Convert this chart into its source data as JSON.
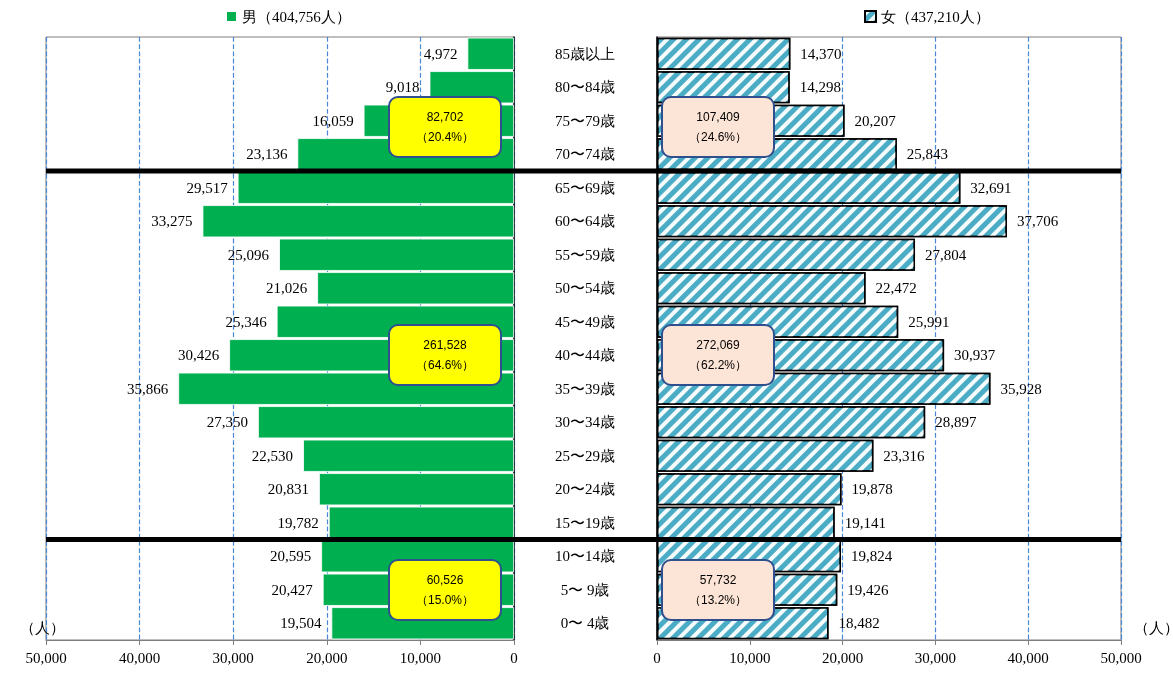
{
  "chart_data": [
    {
      "type": "bar",
      "orientation": "horizontal",
      "categories": [
        "85歳以上",
        "80〜84歳",
        "75〜79歳",
        "70〜74歳",
        "65〜69歳",
        "60〜64歳",
        "55〜59歳",
        "50〜54歳",
        "45〜49歳",
        "40〜44歳",
        "35〜39歳",
        "30〜34歳",
        "25〜29歳",
        "20〜24歳",
        "15〜19歳",
        "10〜14歳",
        "5〜 9歳",
        "0〜 4歳"
      ],
      "series": [
        {
          "name": "男（404,756人）",
          "color": "#00b050",
          "values": [
            4972,
            9018,
            16059,
            23136,
            29517,
            33275,
            25096,
            21026,
            25346,
            30426,
            35866,
            27350,
            22530,
            20831,
            19782,
            20595,
            20427,
            19504
          ],
          "value_labels": [
            "4,972",
            "9,018",
            "16,059",
            "23,136",
            "29,517",
            "33,275",
            "25,096",
            "21,026",
            "25,346",
            "30,426",
            "35,866",
            "27,350",
            "22,530",
            "20,831",
            "19,782",
            "20,595",
            "20,427",
            "19,504"
          ]
        }
      ],
      "xlim": [
        50000,
        0
      ],
      "xticks": [
        {
          "value": 50000,
          "label": "50,000"
        },
        {
          "value": 40000,
          "label": "40,000"
        },
        {
          "value": 30000,
          "label": "30,000"
        },
        {
          "value": 20000,
          "label": "20,000"
        },
        {
          "value": 10000,
          "label": "10,000"
        },
        0
      ],
      "xlabel": "（人）",
      "grid": "x",
      "legend": "top",
      "annotations": [
        "82,702\n（20.4%）",
        "261,528\n（64.6%）",
        "60,526\n（15.0%）"
      ]
    },
    {
      "type": "bar",
      "orientation": "horizontal",
      "categories": [
        null,
        null,
        null,
        null,
        null,
        null,
        null,
        null,
        null,
        null,
        null,
        null,
        null,
        null,
        null,
        null,
        null,
        null
      ],
      "series": [
        {
          "name": "女（437,210人）",
          "color": "#4bacc6",
          "values": [
            14370,
            14298,
            20207,
            25843,
            32691,
            37706,
            27804,
            22472,
            25991,
            30937,
            35928,
            28897,
            23316,
            19878,
            19141,
            19824,
            19426,
            18482
          ],
          "value_labels": [
            "14,370",
            "14,298",
            "20,207",
            "25,843",
            "32,691",
            "37,706",
            "27,804",
            "22,472",
            "25,991",
            "30,937",
            "35,928",
            "28,897",
            "23,316",
            "19,878",
            "19,141",
            "19,824",
            "19,426",
            "18,482"
          ]
        }
      ],
      "xlim": [
        0,
        50000
      ],
      "xticks": [
        0,
        {
          "value": 10000,
          "label": "10,000"
        },
        {
          "value": 20000,
          "label": "20,000"
        },
        {
          "value": 30000,
          "label": "30,000"
        },
        {
          "value": 40000,
          "label": "40,000"
        },
        {
          "value": 50000,
          "label": "50,000"
        }
      ],
      "xlabel": "（人）",
      "grid": "x",
      "legend": "top",
      "tick_labels": "x",
      "annotations": [
        "107,409\n（24.6%）",
        "272,069\n（62.2%）",
        "57,732\n（13.2%）"
      ]
    }
  ]
}
